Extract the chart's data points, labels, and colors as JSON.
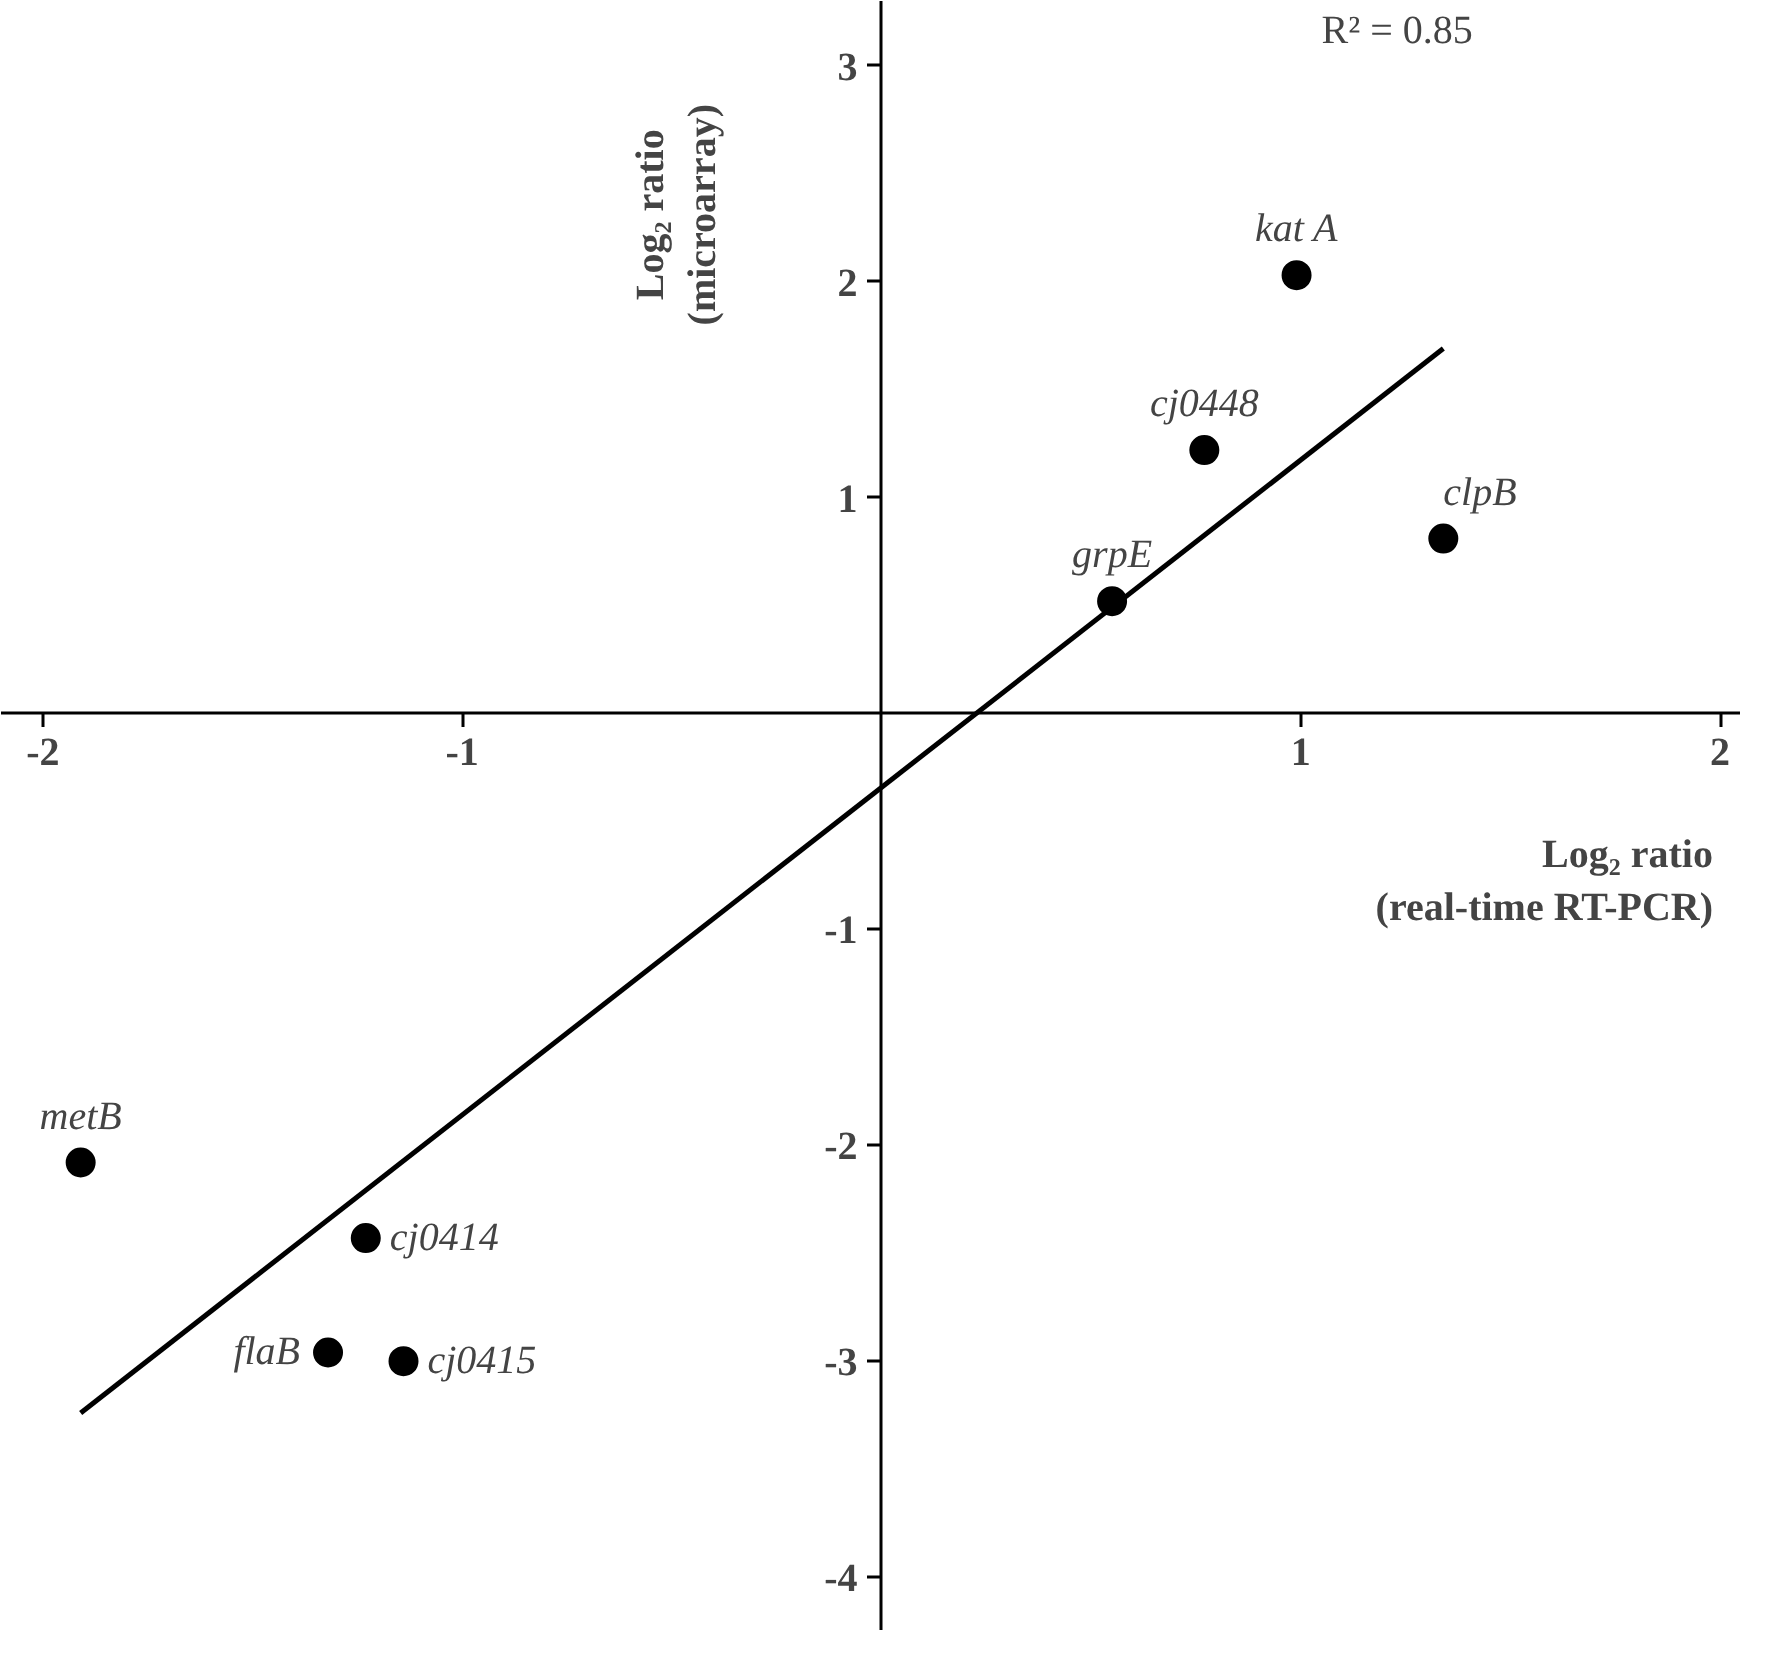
{
  "chart_data": {
    "type": "scatter",
    "xlabel": "Log₂ ratio\n(real-time RT-PCR)",
    "ylabel": "Log₂ ratio\n(microarray)",
    "xlim": [
      -2.1,
      2.05
    ],
    "ylim": [
      -4.25,
      3.3
    ],
    "xticks": [
      -2,
      -1,
      1,
      2
    ],
    "yticks": [
      -4,
      -3,
      -2,
      -1,
      1,
      2,
      3
    ],
    "series": [
      {
        "color": "#000000",
        "marker": "circle",
        "x": [
          0.99,
          0.77,
          1.34,
          0.55,
          -1.91,
          -1.23,
          -1.32,
          -1.14
        ],
        "values": [
          2.03,
          1.22,
          0.81,
          0.52,
          -2.08,
          -2.43,
          -2.96,
          -3.0
        ]
      },
      {
        "type": "line",
        "color": "#000000",
        "line_style": "solid",
        "marker": "none",
        "x": [
          -1.91,
          1.34
        ],
        "values": [
          -3.24,
          1.69
        ]
      }
    ],
    "annotations": [
      {
        "text": "kat A",
        "x": 0.99,
        "y": 2.03
      },
      {
        "text": "cj0448",
        "x": 0.77,
        "y": 1.22
      },
      {
        "text": "clpB",
        "x": 1.34,
        "y": 0.81
      },
      {
        "text": "grpE",
        "x": 0.55,
        "y": 0.52
      },
      {
        "text": "metB",
        "x": -1.91,
        "y": -2.08
      },
      {
        "text": "cj0414",
        "x": -1.23,
        "y": -2.43
      },
      {
        "text": "flaB",
        "x": -1.32,
        "y": -2.96
      },
      {
        "text": "cj0415",
        "x": -1.14,
        "y": -3.0
      },
      "R² = 0.85"
    ]
  }
}
